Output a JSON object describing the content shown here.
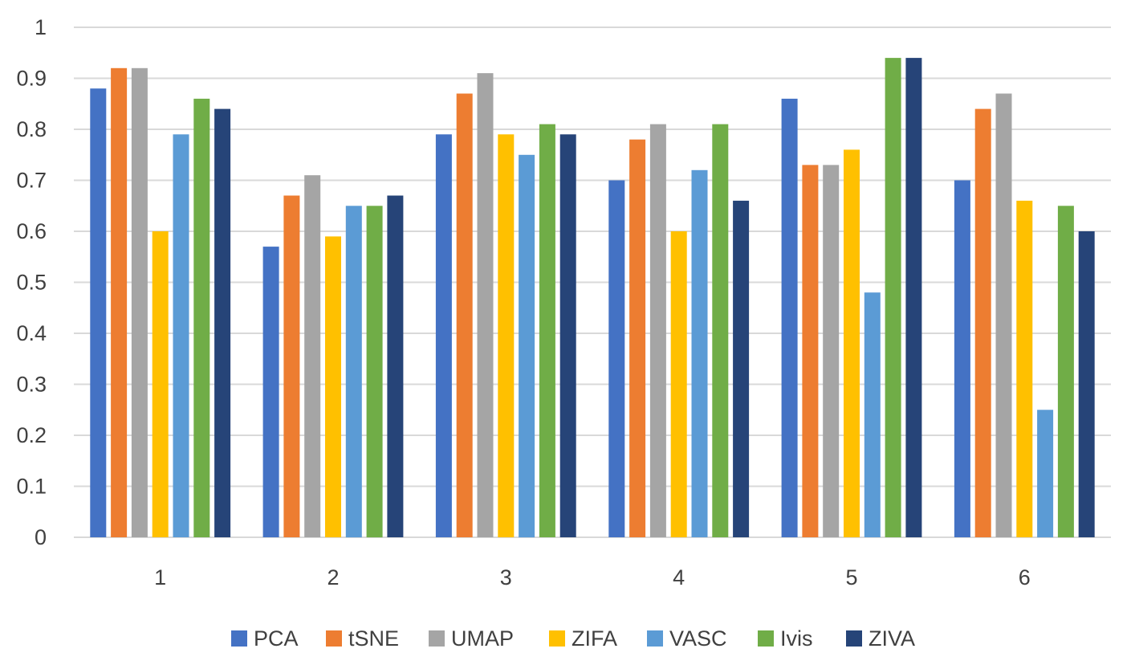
{
  "chart_data": {
    "type": "bar",
    "title": "",
    "xlabel": "",
    "ylabel": "",
    "ylim": [
      0,
      1
    ],
    "yticks": [
      "0",
      "0.1",
      "0.2",
      "0.3",
      "0.4",
      "0.5",
      "0.6",
      "0.7",
      "0.8",
      "0.9",
      "1"
    ],
    "grid": true,
    "legend_position": "bottom",
    "categories": [
      "1",
      "2",
      "3",
      "4",
      "5",
      "6"
    ],
    "series": [
      {
        "name": "PCA",
        "color": "#4472c4",
        "values": [
          0.88,
          0.57,
          0.79,
          0.7,
          0.86,
          0.7
        ]
      },
      {
        "name": "tSNE",
        "color": "#ed7d31",
        "values": [
          0.92,
          0.67,
          0.87,
          0.78,
          0.73,
          0.84
        ]
      },
      {
        "name": "UMAP",
        "color": "#a5a5a5",
        "values": [
          0.92,
          0.71,
          0.91,
          0.81,
          0.73,
          0.87
        ]
      },
      {
        "name": "ZIFA",
        "color": "#ffc000",
        "values": [
          0.6,
          0.59,
          0.79,
          0.6,
          0.76,
          0.66
        ]
      },
      {
        "name": "VASC",
        "color": "#5b9bd5",
        "values": [
          0.79,
          0.65,
          0.75,
          0.72,
          0.48,
          0.25
        ]
      },
      {
        "name": "Ivis",
        "color": "#70ad47",
        "values": [
          0.86,
          0.65,
          0.81,
          0.81,
          0.94,
          0.65
        ]
      },
      {
        "name": "ZIVA",
        "color": "#264478",
        "values": [
          0.84,
          0.67,
          0.79,
          0.66,
          0.94,
          0.6
        ]
      }
    ]
  }
}
